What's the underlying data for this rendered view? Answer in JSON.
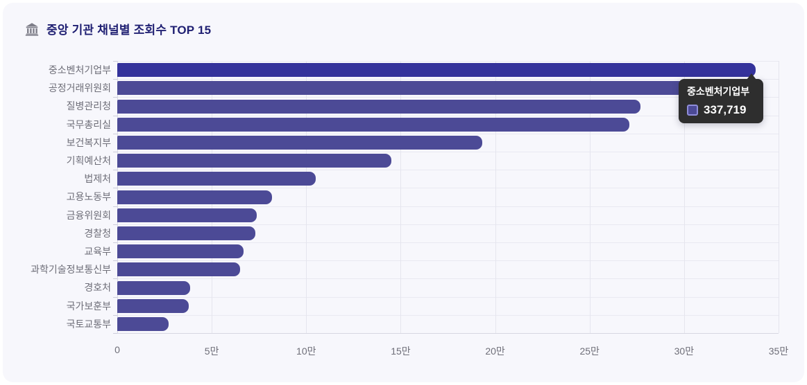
{
  "card": {
    "title": "중앙 기관 채널별 조회수 TOP 15",
    "title_icon": "bank-icon",
    "background": "#f7f7fc"
  },
  "tooltip": {
    "series_name": "중소벤처기업부",
    "value": "337,719"
  },
  "colors": {
    "bar": "#4C4A96",
    "bar_highlight": "#34329B",
    "grid_line": "#e5e5ee",
    "axis_line": "#d7d7e2",
    "axis_label": "#6e6e78",
    "title_text": "#1f1f72",
    "tooltip_bg": "#2e2e2e",
    "tooltip_text": "#ffffff",
    "tooltip_swatch_border": "#8f8dda"
  },
  "chart_data": {
    "type": "bar",
    "orientation": "horizontal",
    "title": "중앙 기관 채널별 조회수 TOP 15",
    "categories": [
      "중소벤처기업부",
      "공정거래위원회",
      "질병관리청",
      "국무총리실",
      "보건복지부",
      "기획예산처",
      "법제처",
      "고용노동부",
      "금융위원회",
      "경찰청",
      "교육부",
      "과학기술정보통신부",
      "경호처",
      "국가보훈부",
      "국토교통부"
    ],
    "values": [
      337719,
      320000,
      277000,
      271000,
      193000,
      145000,
      105000,
      82000,
      74000,
      73000,
      67000,
      65000,
      38500,
      38000,
      27000
    ],
    "highlighted_index": 0,
    "highlighted_value_label": "337,719",
    "xlim": [
      0,
      350000
    ],
    "x_ticks": [
      {
        "value": 0,
        "label": "0"
      },
      {
        "value": 50000,
        "label": "5만"
      },
      {
        "value": 100000,
        "label": "10만"
      },
      {
        "value": 150000,
        "label": "15만"
      },
      {
        "value": 200000,
        "label": "20만"
      },
      {
        "value": 250000,
        "label": "25만"
      },
      {
        "value": 300000,
        "label": "30만"
      },
      {
        "value": 350000,
        "label": "35만"
      }
    ],
    "grid": true,
    "legend": "none"
  }
}
